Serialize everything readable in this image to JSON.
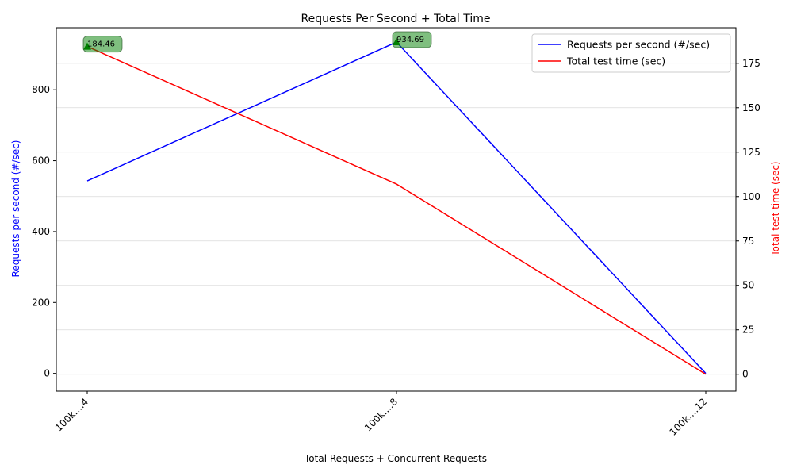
{
  "chart_data": {
    "type": "line",
    "title": "Requests Per Second + Total Time",
    "xlabel": "Total Requests + Concurrent Requests",
    "ylabel_left": "Requests per second (#/sec)",
    "ylabel_right": "Total test time (sec)",
    "categories": [
      "100k....4",
      "100k....8",
      "100k....12"
    ],
    "ylim_left": [
      -50,
      975
    ],
    "ylim_right": [
      -9.5,
      195
    ],
    "yticks_left": [
      0,
      200,
      400,
      600,
      800
    ],
    "yticks_right": [
      0,
      25,
      50,
      75,
      100,
      125,
      150,
      175
    ],
    "grid": "horizontal",
    "legend_position": "upper right",
    "series": [
      {
        "name": "Requests per second (#/sec)",
        "axis": "left",
        "color": "#0000ff",
        "values": [
          543,
          934.69,
          0
        ]
      },
      {
        "name": "Total test time (sec)",
        "axis": "right",
        "color": "#ff0000",
        "values": [
          184.46,
          107,
          0
        ]
      }
    ],
    "annotations": [
      {
        "text": "184.46",
        "category": "100k....4",
        "series": "Total test time (sec)",
        "value": 184.46,
        "marker_color": "#008000"
      },
      {
        "text": "934.69",
        "category": "100k....8",
        "series": "Requests per second (#/sec)",
        "value": 934.69,
        "marker_color": "#008000"
      }
    ]
  }
}
